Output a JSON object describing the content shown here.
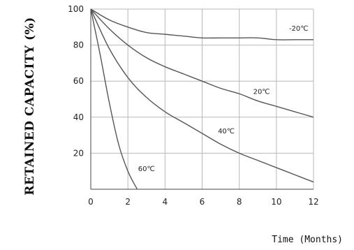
{
  "chart_data": {
    "type": "line",
    "title": "",
    "xlabel": "Time (Months)",
    "ylabel": "RETAINED CAPACITY (%)",
    "xlim": [
      0,
      12
    ],
    "ylim": [
      0,
      100
    ],
    "xticks": [
      0,
      2,
      4,
      6,
      8,
      10,
      12
    ],
    "yticks": [
      20,
      40,
      60,
      80,
      100
    ],
    "grid": true,
    "series": [
      {
        "name": "-20℃",
        "x": [
          0,
          1,
          2,
          3,
          4,
          5,
          6,
          7,
          8,
          9,
          10,
          11,
          12
        ],
        "y": [
          100,
          94,
          90,
          87,
          86,
          85,
          84,
          84,
          84,
          84,
          83,
          83,
          83
        ]
      },
      {
        "name": "20℃",
        "x": [
          0,
          1,
          2,
          3,
          4,
          5,
          6,
          7,
          8,
          9,
          10,
          11,
          12
        ],
        "y": [
          100,
          89,
          80,
          73,
          68,
          64,
          60,
          56,
          53,
          49,
          46,
          43,
          40
        ]
      },
      {
        "name": "40℃",
        "x": [
          0,
          1,
          2,
          3,
          4,
          5,
          6,
          7,
          8,
          9,
          10,
          11,
          12
        ],
        "y": [
          100,
          78,
          62,
          51,
          43,
          37,
          31,
          25,
          20,
          16,
          12,
          8,
          4
        ]
      },
      {
        "name": "60℃",
        "x": [
          0,
          0.5,
          1,
          1.5,
          2,
          2.5
        ],
        "y": [
          100,
          75,
          48,
          25,
          10,
          0
        ]
      }
    ]
  }
}
